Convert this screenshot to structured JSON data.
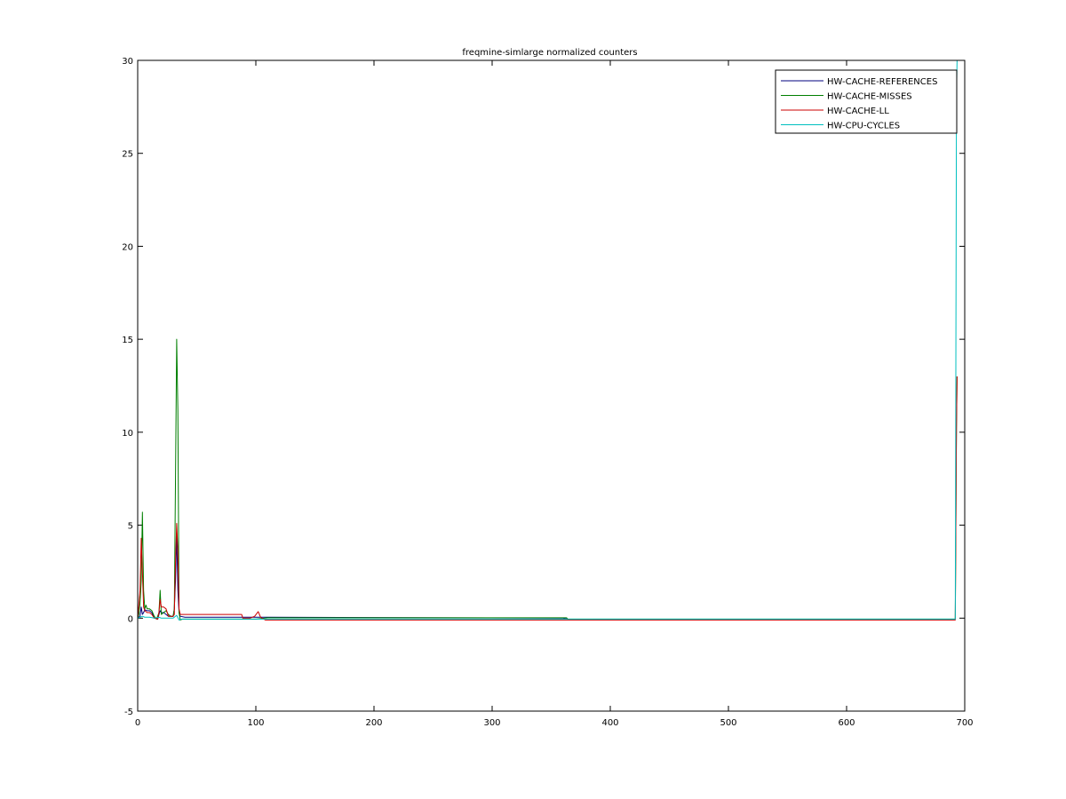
{
  "chart_data": {
    "type": "line",
    "title": "freqmine-simlarge normalized counters",
    "xlabel": "",
    "ylabel": "",
    "xlim": [
      0,
      700
    ],
    "ylim": [
      -5,
      30
    ],
    "xticks": [
      0,
      100,
      200,
      300,
      400,
      500,
      600,
      700
    ],
    "yticks": [
      -5,
      0,
      5,
      10,
      15,
      20,
      25,
      30
    ],
    "grid": false,
    "legend_position": "top-right",
    "series": [
      {
        "name": "HW-CACHE-REFERENCES",
        "color": "#00007f",
        "points": [
          [
            0,
            0
          ],
          [
            2,
            0.1
          ],
          [
            3,
            0.6
          ],
          [
            4,
            0.2
          ],
          [
            5,
            0.3
          ],
          [
            6,
            0.45
          ],
          [
            8,
            0.4
          ],
          [
            10,
            0.4
          ],
          [
            12,
            0.3
          ],
          [
            14,
            0.0
          ],
          [
            17,
            -0.05
          ],
          [
            18,
            0.2
          ],
          [
            19,
            0.4
          ],
          [
            20,
            0.3
          ],
          [
            22,
            0.3
          ],
          [
            24,
            0.2
          ],
          [
            26,
            0.1
          ],
          [
            28,
            0.1
          ],
          [
            30,
            0.1
          ],
          [
            31,
            0.5
          ],
          [
            32,
            2.0
          ],
          [
            33,
            4.5
          ],
          [
            34,
            1.5
          ],
          [
            35,
            0.3
          ],
          [
            36,
            0.1
          ],
          [
            40,
            0.05
          ],
          [
            100,
            0.05
          ],
          [
            110,
            0.05
          ],
          [
            360,
            0.0
          ],
          [
            364,
            -0.05
          ],
          [
            692,
            -0.08
          ]
        ]
      },
      {
        "name": "HW-CACHE-MISSES",
        "color": "#007f00",
        "points": [
          [
            0,
            0
          ],
          [
            1,
            0.2
          ],
          [
            2,
            0.8
          ],
          [
            3,
            2.0
          ],
          [
            4,
            5.7
          ],
          [
            5,
            1.5
          ],
          [
            6,
            0.5
          ],
          [
            7,
            0.7
          ],
          [
            8,
            0.5
          ],
          [
            10,
            0.5
          ],
          [
            12,
            0.4
          ],
          [
            14,
            0.1
          ],
          [
            16,
            -0.05
          ],
          [
            18,
            0.3
          ],
          [
            19,
            1.5
          ],
          [
            20,
            0.2
          ],
          [
            22,
            0.3
          ],
          [
            24,
            0.4
          ],
          [
            26,
            0.2
          ],
          [
            28,
            0.1
          ],
          [
            30,
            0.1
          ],
          [
            31,
            0.5
          ],
          [
            32,
            7.5
          ],
          [
            33,
            15.0
          ],
          [
            34,
            11.2
          ],
          [
            35,
            0.3
          ],
          [
            36,
            -0.1
          ],
          [
            38,
            -0.05
          ],
          [
            100,
            -0.05
          ],
          [
            110,
            0.02
          ],
          [
            363,
            0.02
          ],
          [
            364,
            -0.05
          ],
          [
            692,
            -0.05
          ],
          [
            693,
            10.2
          ],
          [
            693.5,
            13.0
          ]
        ]
      },
      {
        "name": "HW-CACHE-LL",
        "color": "#cc0000",
        "points": [
          [
            0,
            0
          ],
          [
            2,
            1.5
          ],
          [
            3,
            4.3
          ],
          [
            4,
            2.5
          ],
          [
            5,
            0.6
          ],
          [
            6,
            0.4
          ],
          [
            8,
            0.3
          ],
          [
            10,
            0.3
          ],
          [
            12,
            0.2
          ],
          [
            14,
            0.0
          ],
          [
            17,
            -0.05
          ],
          [
            18,
            0.3
          ],
          [
            19,
            1.0
          ],
          [
            20,
            0.6
          ],
          [
            22,
            0.6
          ],
          [
            24,
            0.5
          ],
          [
            26,
            0.1
          ],
          [
            28,
            0.1
          ],
          [
            30,
            0.1
          ],
          [
            31,
            0.2
          ],
          [
            32,
            3.0
          ],
          [
            33,
            5.1
          ],
          [
            34,
            3.6
          ],
          [
            35,
            0.5
          ],
          [
            36,
            0.2
          ],
          [
            88,
            0.2
          ],
          [
            89,
            0.0
          ],
          [
            95,
            0.0
          ],
          [
            99,
            0.1
          ],
          [
            102,
            0.35
          ],
          [
            104,
            0.05
          ],
          [
            108,
            -0.1
          ],
          [
            364,
            -0.1
          ],
          [
            692,
            -0.1
          ],
          [
            693,
            10.2
          ],
          [
            693.5,
            13.0
          ]
        ]
      },
      {
        "name": "HW-CPU-CYCLES",
        "color": "#00bfbf",
        "points": [
          [
            0,
            0
          ],
          [
            2,
            0.05
          ],
          [
            4,
            0.1
          ],
          [
            6,
            0.05
          ],
          [
            10,
            0.05
          ],
          [
            14,
            0.0
          ],
          [
            18,
            0.05
          ],
          [
            20,
            0.0
          ],
          [
            26,
            0.0
          ],
          [
            30,
            0.0
          ],
          [
            33,
            0.15
          ],
          [
            35,
            -0.1
          ],
          [
            37,
            -0.05
          ],
          [
            40,
            -0.05
          ],
          [
            364,
            -0.05
          ],
          [
            692,
            -0.05
          ],
          [
            693,
            28.0
          ],
          [
            693.5,
            30.0
          ]
        ]
      }
    ]
  }
}
